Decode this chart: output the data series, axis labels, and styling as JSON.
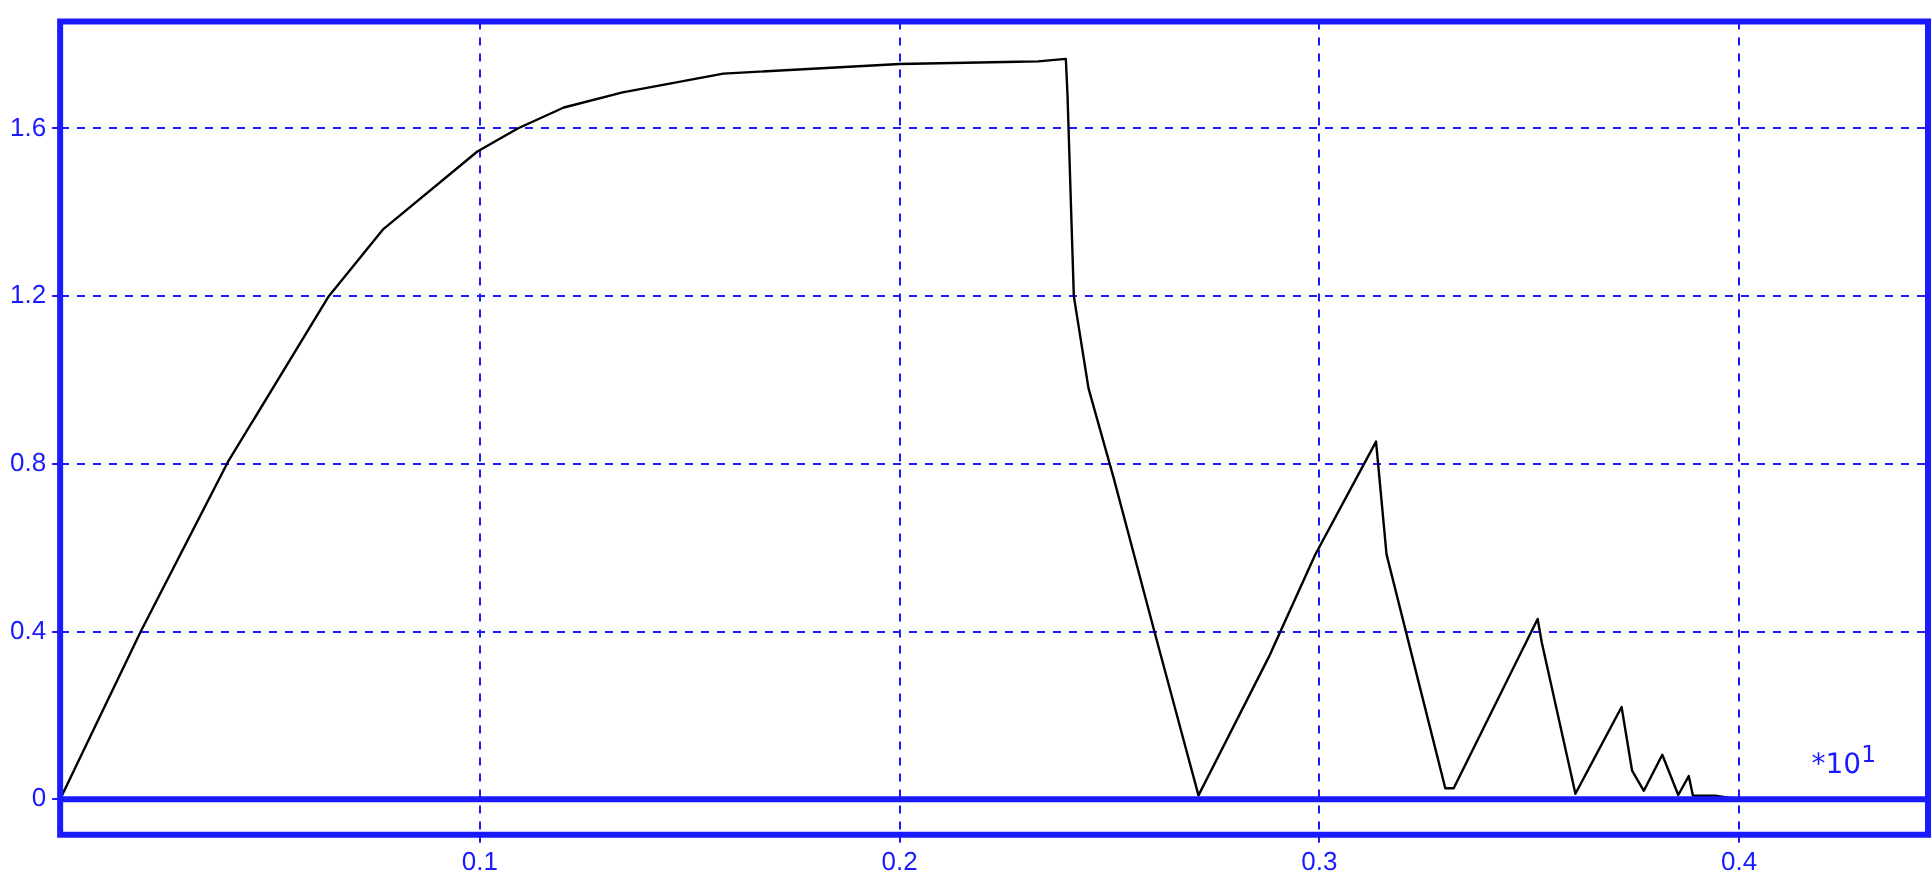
{
  "chart_data": {
    "type": "line",
    "x": [
      0,
      0.0192,
      0.04,
      0.064,
      0.077,
      0.0994,
      0.109,
      0.12,
      0.134,
      0.158,
      0.2,
      0.233,
      0.2396,
      0.24,
      0.2415,
      0.245,
      0.251,
      0.2607,
      0.2712,
      0.288,
      0.299,
      0.3135,
      0.316,
      0.324,
      0.33,
      0.332,
      0.352,
      0.353,
      0.361,
      0.372,
      0.3745,
      0.3773,
      0.3817,
      0.3855,
      0.388,
      0.389,
      0.3946,
      0.4,
      0.445
    ],
    "values": [
      0,
      0.4,
      0.805,
      1.2,
      1.36,
      1.545,
      1.6,
      1.65,
      1.686,
      1.731,
      1.754,
      1.76,
      1.766,
      1.678,
      1.2,
      0.98,
      0.766,
      0.4,
      0.009,
      0.34,
      0.583,
      0.853,
      0.584,
      0.265,
      0.026,
      0.026,
      0.43,
      0.373,
      0.013,
      0.22,
      0.068,
      0.02,
      0.106,
      0.01,
      0.055,
      0.008,
      0.008,
      0,
      0
    ],
    "color": "#000000",
    "xlim": [
      0,
      0.445
    ],
    "ylim": [
      -0.085,
      1.855
    ],
    "xticks": [
      0.1,
      0.2,
      0.3,
      0.4
    ],
    "yticks": [
      0,
      0.4,
      0.8,
      1.2,
      1.6
    ],
    "grid": true,
    "legend": false,
    "marker": "none",
    "line_style": "solid",
    "ref_lines": [
      {
        "axis": "y",
        "value": 0,
        "color": "#1a1aff",
        "line_style": "solid"
      }
    ],
    "annotations": [
      "*10$^{1}$"
    ]
  }
}
